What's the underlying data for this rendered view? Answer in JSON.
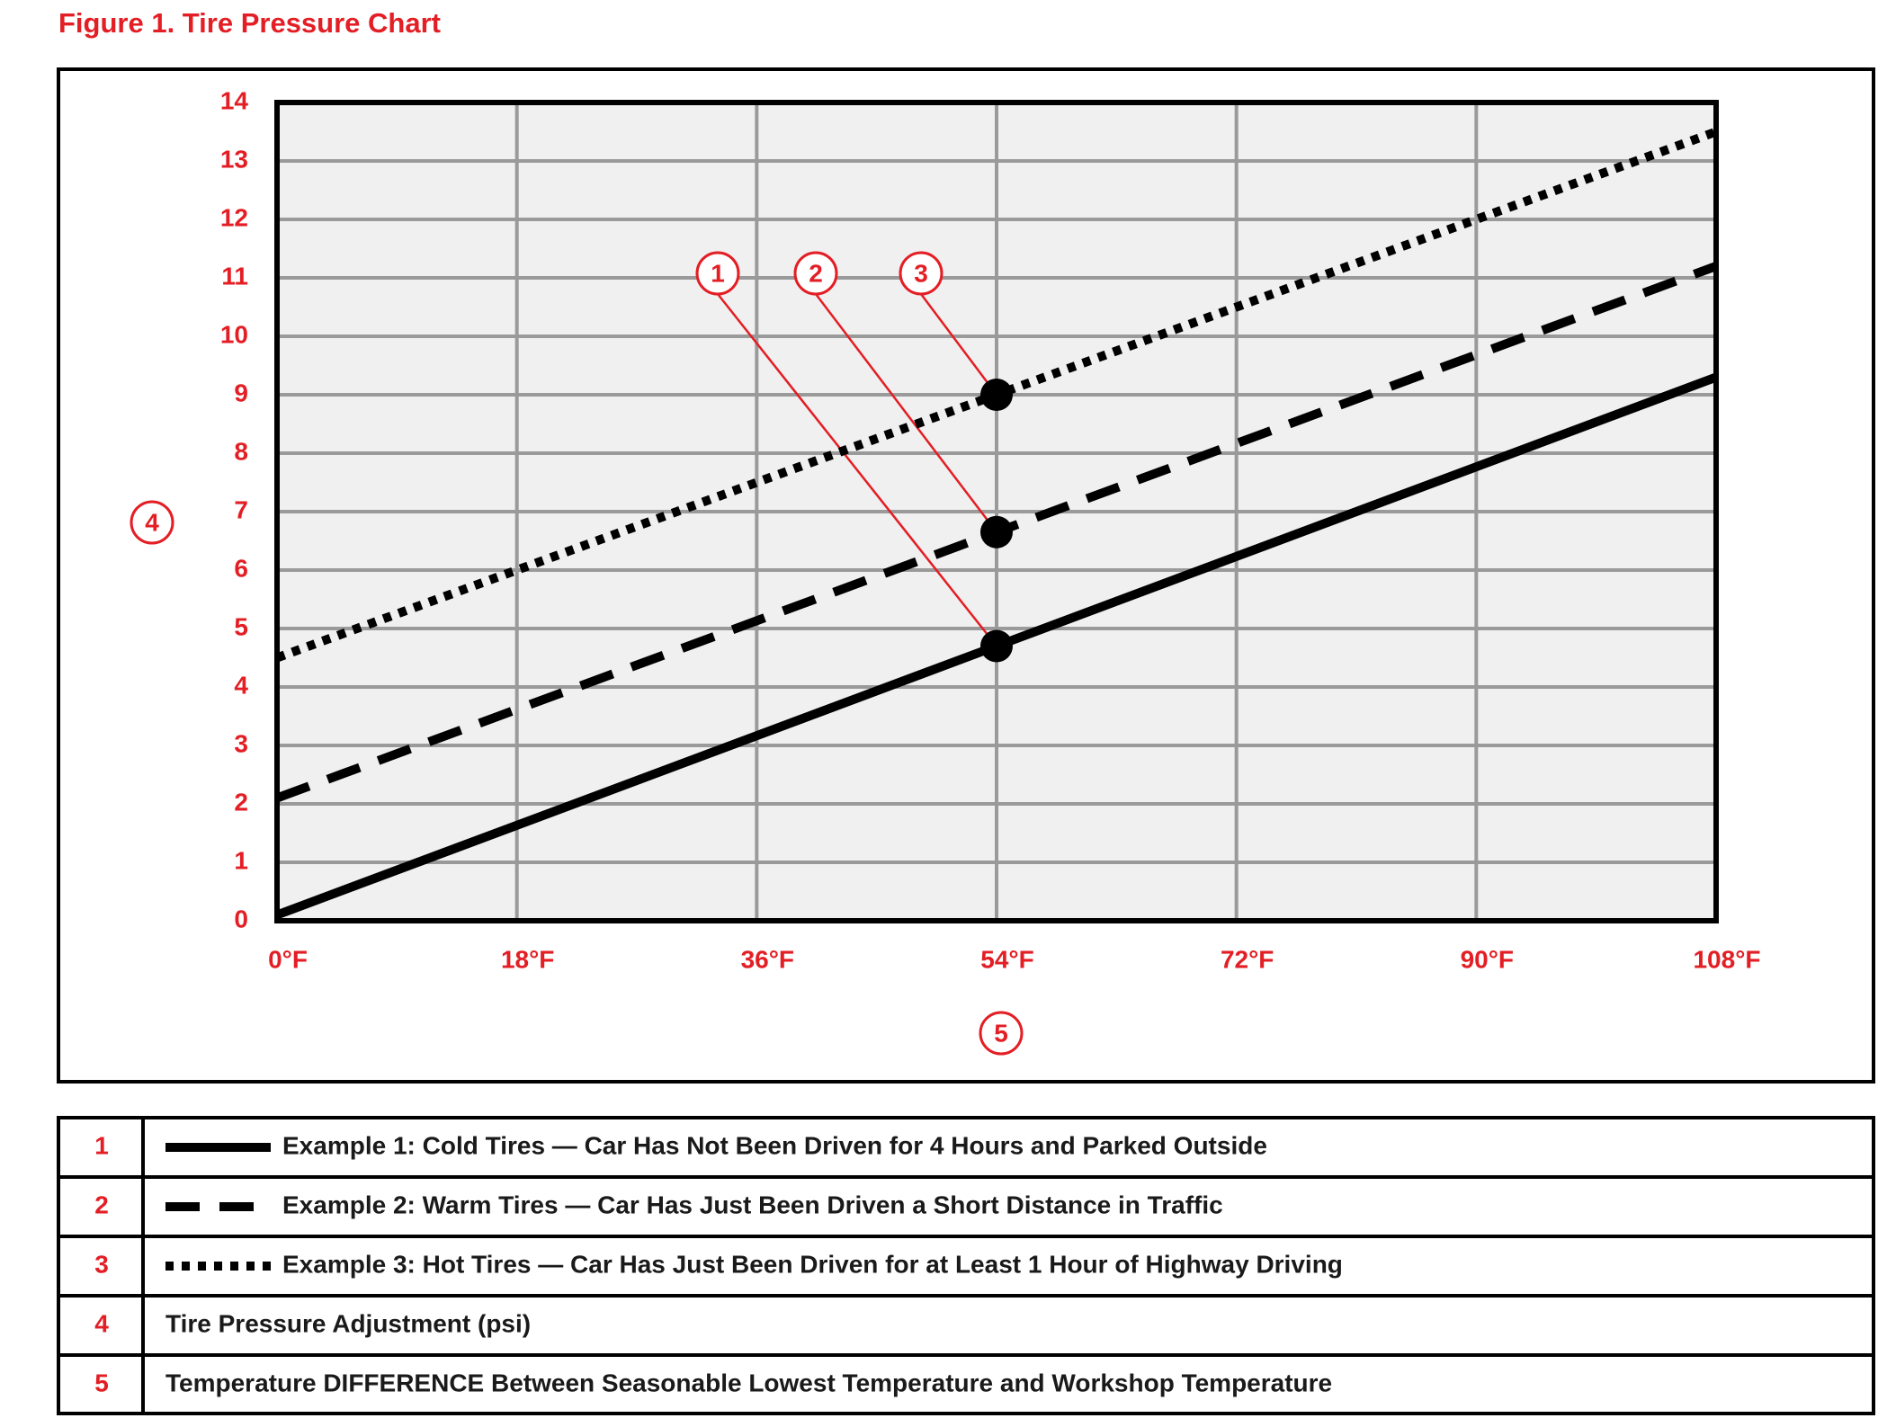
{
  "chart_data": {
    "type": "line",
    "title": "Figure 1.  Tire Pressure Chart",
    "x": [
      0,
      54,
      108
    ],
    "xlim": [
      0,
      108
    ],
    "xticks": [
      {
        "value": 0,
        "label": "0°F"
      },
      {
        "value": 18,
        "label": "18°F"
      },
      {
        "value": 36,
        "label": "36°F"
      },
      {
        "value": 54,
        "label": "54°F"
      },
      {
        "value": 72,
        "label": "72°F"
      },
      {
        "value": 90,
        "label": "90°F"
      },
      {
        "value": 108,
        "label": "108°F"
      }
    ],
    "ylim": [
      0,
      14
    ],
    "yticks": [
      0,
      1,
      2,
      3,
      4,
      5,
      6,
      7,
      8,
      9,
      10,
      11,
      12,
      13,
      14
    ],
    "grid": true,
    "y_label_key": "4",
    "y_label": "Tire Pressure Adjustment (psi)",
    "x_label_key": "5",
    "x_label": "Temperature DIFFERENCE Between Seasonable Lowest Temperature and Workshop Temperature",
    "series": [
      {
        "key": "1",
        "name": "Example 1: Cold Tires — Car Has Not Been Driven for 4 Hours and Parked Outside",
        "color": "#000000",
        "style": "solid",
        "values": [
          0.1,
          4.7,
          9.3
        ],
        "points": [
          {
            "x": 54,
            "y": 4.7
          }
        ]
      },
      {
        "key": "2",
        "name": "Example 2: Warm Tires — Car Has Just Been Driven a Short Distance in Traffic",
        "color": "#000000",
        "style": "dashed",
        "values": [
          2.1,
          6.65,
          11.2
        ],
        "points": [
          {
            "x": 54,
            "y": 6.65
          }
        ]
      },
      {
        "key": "3",
        "name": "Example 3: Hot Tires — Car Has Just Been Driven for at Least 1 Hour of Highway Driving",
        "color": "#000000",
        "style": "dotted",
        "values": [
          4.5,
          9.0,
          13.5
        ],
        "points": [
          {
            "x": 54,
            "y": 9.0
          }
        ]
      }
    ]
  }
}
